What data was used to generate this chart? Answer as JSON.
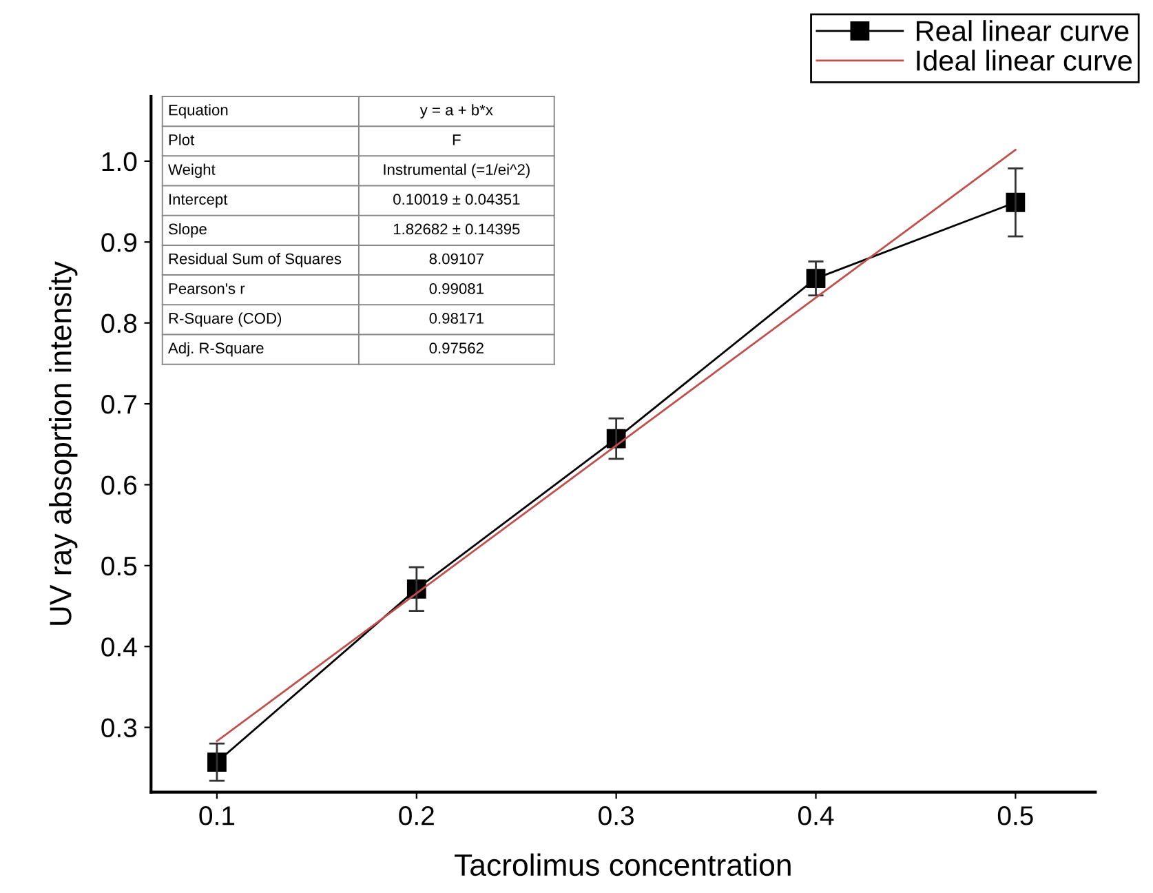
{
  "chart_data": {
    "type": "line",
    "xlabel": "Tacrolimus concentration",
    "ylabel": "UV ray absoprtion intensity",
    "xlim": [
      0.067,
      0.54
    ],
    "ylim": [
      0.22,
      1.08
    ],
    "xticks": [
      0.1,
      0.2,
      0.3,
      0.4,
      0.5
    ],
    "yticks": [
      0.3,
      0.4,
      0.5,
      0.6,
      0.7,
      0.8,
      0.9,
      {
        "value": 1,
        "label": "1.0"
      }
    ],
    "grid": false,
    "legend": "top right",
    "series": [
      {
        "name": "Real linear curve",
        "color": "#000000",
        "marker": "square",
        "x": [
          0.1,
          0.2,
          0.3,
          0.4,
          0.5
        ],
        "values": [
          0.257,
          0.471,
          0.657,
          0.855,
          0.949
        ],
        "errors": [
          0.023,
          0.027,
          0.025,
          0.021,
          0.042
        ]
      },
      {
        "name": "Ideal linear curve",
        "color": "#c0504d",
        "marker": "none",
        "x": [
          0.1,
          0.5
        ],
        "values": [
          0.283,
          1.014
        ]
      }
    ],
    "annotations": [
      "Equation",
      "y = a + b*x",
      "Plot",
      "F",
      "Weight",
      "Instrumental (=1/ei^2)",
      "Intercept",
      "0.10019 ± 0.04351",
      "Slope",
      "1.82682 ± 0.14395",
      "Residual Sum of Squares",
      "8.09107",
      "Pearson's r",
      "0.99081",
      "R-Square (COD)",
      "0.98171",
      "Adj. R-Square",
      "0.97562"
    ]
  }
}
